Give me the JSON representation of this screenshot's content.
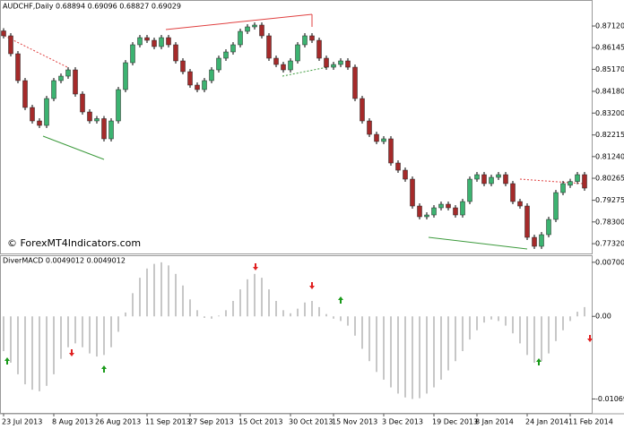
{
  "chart_data": [
    {
      "type": "candlestick",
      "title": "AUDCHF,Daily 0.68894 0.69096 0.68827 0.69029",
      "annotation": "© ForexMT4Indicators.com",
      "categories": [
        "23 Jul 2013",
        null,
        null,
        null,
        null,
        null,
        null,
        "8 Aug 2013",
        null,
        null,
        null,
        null,
        null,
        "26 Aug 2013",
        null,
        null,
        null,
        null,
        null,
        null,
        "11 Sep 2013",
        null,
        null,
        null,
        null,
        null,
        "27 Sep 2013",
        null,
        null,
        null,
        null,
        null,
        null,
        "15 Oct 2013",
        null,
        null,
        null,
        null,
        null,
        null,
        "30 Oct 2013",
        null,
        null,
        null,
        null,
        null,
        "15 Nov 2013",
        null,
        null,
        null,
        null,
        null,
        null,
        "3 Dec 2013",
        null,
        null,
        null,
        null,
        null,
        null,
        "19 Dec 2013",
        null,
        null,
        null,
        null,
        null,
        "8 Jan 2014",
        null,
        null,
        null,
        null,
        null,
        null,
        "24 Jan 2014",
        null,
        null,
        null,
        null,
        null,
        "11 Feb 2014",
        null,
        null
      ],
      "open": [
        0.869,
        0.86678,
        0.85871,
        0.84662,
        0.83452,
        0.82847,
        0.82645,
        0.83855,
        0.84662,
        0.84863,
        0.85145,
        0.84057,
        0.8325,
        0.82847,
        0.8295,
        0.82041,
        0.82847,
        0.84258,
        0.85468,
        0.86275,
        0.86597,
        0.86476,
        0.86194,
        0.86597,
        0.86275,
        0.85549,
        0.85065,
        0.8446,
        0.84258,
        0.84662,
        0.85145,
        0.8567,
        0.85952,
        0.86275,
        0.86879,
        0.87081,
        0.87162,
        0.86678,
        0.8567,
        0.85387,
        0.85145,
        0.85549,
        0.86275,
        0.86678,
        0.86476,
        0.8567,
        0.85266,
        0.85387,
        0.85549,
        0.85266,
        0.83855,
        0.82847,
        0.82242,
        0.8192,
        0.82041,
        0.80952,
        0.80629,
        0.80226,
        0.79016,
        0.78533,
        0.78613,
        0.78936,
        0.79097,
        0.78936,
        0.78613,
        0.79218,
        0.80226,
        0.80428,
        0.80025,
        0.80307,
        0.80428,
        0.80025,
        0.79218,
        0.79016,
        0.77605,
        0.77202,
        0.77726,
        0.78412,
        0.79621,
        0.7995,
        0.8012,
        0.80428
      ],
      "high": [
        0.8702,
        0.86798,
        0.85991,
        0.84782,
        0.83572,
        0.82967,
        0.83975,
        0.84782,
        0.84983,
        0.85265,
        0.85265,
        0.84177,
        0.8337,
        0.8307,
        0.8307,
        0.82967,
        0.84378,
        0.85588,
        0.86395,
        0.86717,
        0.86717,
        0.86596,
        0.86717,
        0.86717,
        0.86395,
        0.85669,
        0.85185,
        0.8458,
        0.84782,
        0.85265,
        0.8579,
        0.86072,
        0.86395,
        0.86999,
        0.87201,
        0.87282,
        0.87282,
        0.86798,
        0.8579,
        0.85507,
        0.85669,
        0.86395,
        0.86798,
        0.86798,
        0.86596,
        0.8579,
        0.85507,
        0.85669,
        0.85669,
        0.85386,
        0.83975,
        0.82967,
        0.82362,
        0.82161,
        0.82161,
        0.81072,
        0.80749,
        0.80346,
        0.79136,
        0.78733,
        0.79056,
        0.79217,
        0.79217,
        0.79056,
        0.79338,
        0.80346,
        0.80548,
        0.80548,
        0.80427,
        0.80548,
        0.80548,
        0.80145,
        0.79338,
        0.79136,
        0.77725,
        0.77846,
        0.78532,
        0.79741,
        0.80145,
        0.8024,
        0.80548,
        0.80548
      ],
      "low": [
        0.86558,
        0.85751,
        0.84542,
        0.83332,
        0.82727,
        0.82525,
        0.82525,
        0.83735,
        0.84542,
        0.84743,
        0.83937,
        0.8313,
        0.82727,
        0.82727,
        0.81921,
        0.81921,
        0.82727,
        0.84138,
        0.85348,
        0.86155,
        0.86356,
        0.86074,
        0.86074,
        0.86155,
        0.85429,
        0.84945,
        0.8434,
        0.84138,
        0.84138,
        0.84542,
        0.85025,
        0.8555,
        0.85832,
        0.86155,
        0.86759,
        0.86961,
        0.86558,
        0.8555,
        0.85267,
        0.85025,
        0.85025,
        0.85429,
        0.86155,
        0.86356,
        0.8555,
        0.85146,
        0.85146,
        0.85267,
        0.85146,
        0.83735,
        0.82727,
        0.82122,
        0.818,
        0.818,
        0.80832,
        0.80509,
        0.80106,
        0.78896,
        0.78413,
        0.78413,
        0.78493,
        0.78816,
        0.78816,
        0.78493,
        0.78493,
        0.79098,
        0.80106,
        0.79905,
        0.79905,
        0.80187,
        0.79905,
        0.79098,
        0.78896,
        0.77485,
        0.77082,
        0.77082,
        0.77606,
        0.78292,
        0.79501,
        0.7983,
        0.8,
        0.79703
      ],
      "close": [
        0.86678,
        0.85871,
        0.84662,
        0.83452,
        0.82847,
        0.82645,
        0.83855,
        0.84662,
        0.84863,
        0.85145,
        0.84057,
        0.8325,
        0.82847,
        0.8295,
        0.82041,
        0.82847,
        0.84258,
        0.85468,
        0.86275,
        0.86597,
        0.86476,
        0.86194,
        0.86597,
        0.86275,
        0.85549,
        0.85065,
        0.8446,
        0.84258,
        0.84662,
        0.85145,
        0.8567,
        0.85952,
        0.86275,
        0.86879,
        0.87081,
        0.87162,
        0.86678,
        0.8567,
        0.85387,
        0.85145,
        0.85549,
        0.86275,
        0.86678,
        0.86476,
        0.8567,
        0.85266,
        0.85387,
        0.85549,
        0.85266,
        0.83855,
        0.82847,
        0.82242,
        0.8192,
        0.82041,
        0.80952,
        0.80629,
        0.80226,
        0.79016,
        0.78533,
        0.78613,
        0.78936,
        0.79097,
        0.78936,
        0.78613,
        0.79218,
        0.80226,
        0.80428,
        0.80025,
        0.80307,
        0.80428,
        0.80025,
        0.79218,
        0.79016,
        0.77605,
        0.77202,
        0.77726,
        0.78412,
        0.79621,
        0.80025,
        0.8012,
        0.80428,
        0.79823
      ],
      "up_color": "#3cb371",
      "down_color": "#a52a2a",
      "ylim": [
        0.7688,
        0.8821
      ],
      "yticks": [
        {
          "value": 0.8712,
          "label": "0.87120"
        },
        0.86145,
        {
          "value": 0.8517,
          "label": "0.85170"
        },
        {
          "value": 0.8418,
          "label": "0.84180"
        },
        {
          "value": 0.832,
          "label": "0.83200"
        },
        0.82215,
        {
          "value": 0.8124,
          "label": "0.81240"
        },
        0.80265,
        0.79275,
        {
          "value": 0.783,
          "label": "0.78300"
        },
        {
          "value": 0.7732,
          "label": "0.77320"
        }
      ]
    },
    {
      "type": "bar",
      "title": "DiverMACD 0.0049012 0.0049012",
      "values": [
        -0.0045,
        -0.006,
        -0.0075,
        -0.0088,
        -0.0095,
        -0.0097,
        -0.009,
        -0.0075,
        -0.0055,
        -0.004,
        -0.0035,
        -0.004,
        -0.0048,
        -0.0052,
        -0.005,
        -0.004,
        -0.002,
        0.0005,
        0.003,
        0.005,
        0.0062,
        0.0068,
        0.007,
        0.0066,
        0.0055,
        0.004,
        0.0022,
        0.0008,
        -0.0002,
        -0.0003,
        0.0001,
        0.0008,
        0.002,
        0.0035,
        0.0048,
        0.0055,
        0.005,
        0.0035,
        0.002,
        0.0008,
        0.0004,
        0.001,
        0.0018,
        0.002,
        0.0012,
        0.0003,
        -0.0003,
        -0.0006,
        -0.0012,
        -0.0025,
        -0.0042,
        -0.0058,
        -0.0072,
        -0.0082,
        -0.0092,
        -0.01,
        -0.0105,
        -0.0107,
        -0.0106,
        -0.01,
        -0.0092,
        -0.0082,
        -0.007,
        -0.0058,
        -0.0045,
        -0.003,
        -0.0018,
        -0.0008,
        -0.0004,
        -0.0006,
        -0.0012,
        -0.0022,
        -0.0035,
        -0.005,
        -0.006,
        -0.0058,
        -0.0048,
        -0.0032,
        -0.0018,
        -0.0006,
        0.0006,
        0.0012
      ],
      "color": "#b4b4b4",
      "ylim": [
        -0.0125,
        0.0078
      ],
      "yticks": [
        0.0070066,
        {
          "value": 0,
          "label": "0.00"
        },
        -0.0106983
      ]
    }
  ]
}
